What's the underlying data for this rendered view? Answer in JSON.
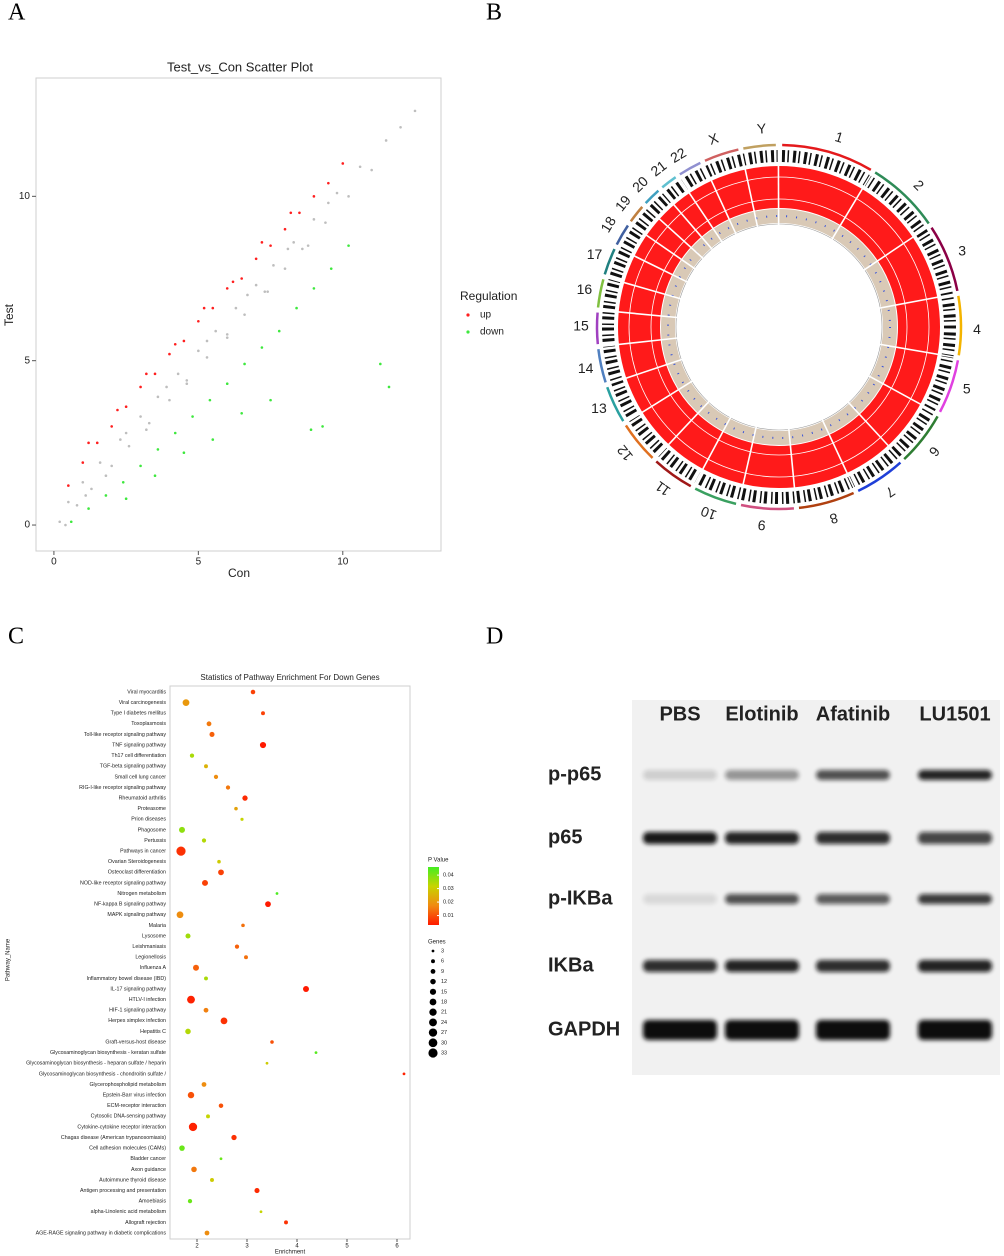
{
  "panels": [
    "A",
    "B",
    "C",
    "D"
  ],
  "chart_data": [
    {
      "type": "scatter",
      "title": "Test_vs_Con Scatter Plot",
      "xlabel": "Con",
      "ylabel": "Test",
      "xlim": [
        -0.62,
        13.4
      ],
      "ylim": [
        -0.79,
        13.6
      ],
      "xticks": [
        0,
        5,
        10
      ],
      "yticks": [
        0,
        5,
        10
      ],
      "legend_title": "Regulation",
      "series": [
        {
          "name": "up",
          "color": "#ff1f1f",
          "x": [
            0.5,
            1,
            1.5,
            2,
            2.5,
            3,
            3.5,
            4,
            4.5,
            5,
            5.5,
            6,
            6.5,
            7,
            7.5,
            8,
            8.5,
            9,
            9.5,
            10,
            1.2,
            2.2,
            3.2,
            4.2,
            5.2,
            6.2,
            7.2,
            8.2
          ],
          "y": [
            1.2,
            1.9,
            2.5,
            3.0,
            3.6,
            4.2,
            4.6,
            5.2,
            5.6,
            6.2,
            6.6,
            7.2,
            7.5,
            8.1,
            8.5,
            9.0,
            9.5,
            10.0,
            10.4,
            11.0,
            2.5,
            3.5,
            4.6,
            5.5,
            6.6,
            7.4,
            8.6,
            9.5
          ]
        },
        {
          "name": "down",
          "color": "#3ee83e",
          "x": [
            0.6,
            1.2,
            1.8,
            2.4,
            3,
            3.6,
            4.2,
            4.8,
            5.4,
            6,
            6.6,
            7.2,
            7.8,
            8.4,
            9,
            9.6,
            10.2,
            2.5,
            3.5,
            4.5,
            5.5,
            6.5,
            7.5,
            11.3,
            11.6,
            9.3,
            8.9
          ],
          "y": [
            0.1,
            0.5,
            0.9,
            1.3,
            1.8,
            2.3,
            2.8,
            3.3,
            3.8,
            4.3,
            4.9,
            5.4,
            5.9,
            6.6,
            7.2,
            7.8,
            8.5,
            0.8,
            1.5,
            2.2,
            2.6,
            3.4,
            3.8,
            4.9,
            4.2,
            3.0,
            2.9
          ]
        },
        {
          "color": "#bebebe",
          "x": [
            0.2,
            0.5,
            0.8,
            1,
            1.3,
            1.6,
            2,
            2.3,
            2.6,
            3,
            3.3,
            3.6,
            4,
            4.3,
            4.6,
            5,
            5.3,
            5.6,
            6,
            6.3,
            6.6,
            7,
            7.3,
            7.6,
            8,
            8.3,
            8.6,
            9,
            9.4,
            9.8,
            10.2,
            10.6,
            11,
            11.5,
            12,
            12.5,
            0.4,
            1.1,
            1.8,
            2.5,
            3.2,
            3.9,
            4.6,
            5.3,
            6,
            6.7,
            7.4,
            8.1,
            8.8,
            9.5
          ],
          "y": [
            0.1,
            0.7,
            0.6,
            1.3,
            1.1,
            1.9,
            1.8,
            2.6,
            2.4,
            3.3,
            3.1,
            3.9,
            3.8,
            4.6,
            4.4,
            5.3,
            5.1,
            5.9,
            5.8,
            6.6,
            6.4,
            7.3,
            7.1,
            7.9,
            7.8,
            8.6,
            8.4,
            9.3,
            9.2,
            10.1,
            10.0,
            10.9,
            10.8,
            11.7,
            12.1,
            12.6,
            0.0,
            0.9,
            1.5,
            2.8,
            2.9,
            4.2,
            4.3,
            5.6,
            5.7,
            7.0,
            7.1,
            8.4,
            8.5,
            9.8
          ]
        }
      ]
    },
    {
      "type": "dot",
      "title": "Statistics of Pathway Enrichment For Down Genes",
      "xlabel": "Enrichment",
      "ylabel": "Pathway_Name",
      "xlim": [
        1.46,
        6.26
      ],
      "xticks": [
        2,
        3,
        4,
        5,
        6
      ],
      "categories": [
        "Viral myocarditis",
        "Viral carcinogenesis",
        "Type I diabetes mellitus",
        "Toxoplasmosis",
        "Toll-like receptor signaling pathway",
        "TNF signaling pathway",
        "Th17 cell differentiation",
        "TGF-beta signaling pathway",
        "Small cell lung cancer",
        "RIG-I-like receptor signaling pathway",
        "Rheumatoid arthritis",
        "Proteasome",
        "Prion diseases",
        "Phagosome",
        "Pertussis",
        "Pathways in cancer",
        "Ovarian Steroidogenesis",
        "Osteoclast differentiation",
        "NOD-like receptor signaling pathway",
        "Nitrogen metabolism",
        "NF-kappa B signaling pathway",
        "MAPK signaling pathway",
        "Malaria",
        "Lysosome",
        "Leishmaniasis",
        "Legionellosis",
        "Influenza A",
        "Inflammatory bowel disease (IBD)",
        "IL-17 signaling pathway",
        "HTLV-I infection",
        "HIF-1 signaling pathway",
        "Herpes simplex infection",
        "Hepatitis C",
        "Graft-versus-host disease",
        "Glycosaminoglycan biosynthesis - keratan sulfate",
        "Glycosaminoglycan biosynthesis - heparan sulfate / heparin",
        "Glycosaminoglycan biosynthesis - chondroitin sulfate /",
        "Glycerophospholipid metabolism",
        "Epstein-Barr virus infection",
        "ECM-receptor interaction",
        "Cytosolic DNA-sensing pathway",
        "Cytokine-cytokine receptor interaction",
        "Chagas disease (American trypanosomiasis)",
        "Cell adhesion molecules (CAMs)",
        "Bladder cancer",
        "Axon guidance",
        "Autoimmune thyroid disease",
        "Antigen processing and presentation",
        "Amoebiasis",
        "alpha-Linolenic acid metabolism",
        "Allograft rejection",
        "AGE-RAGE signaling pathway in diabetic complications"
      ],
      "values": [
        3.12,
        1.78,
        3.32,
        2.24,
        2.3,
        3.32,
        1.9,
        2.18,
        2.38,
        2.62,
        2.96,
        2.78,
        2.9,
        1.7,
        2.14,
        1.68,
        2.44,
        2.48,
        2.16,
        3.6,
        3.42,
        1.66,
        2.92,
        1.82,
        2.8,
        2.98,
        1.98,
        2.18,
        4.18,
        1.88,
        2.18,
        2.54,
        1.82,
        3.5,
        4.38,
        3.4,
        6.14,
        2.14,
        1.88,
        2.48,
        2.22,
        1.92,
        2.74,
        1.7,
        2.48,
        1.94,
        2.3,
        3.2,
        1.86,
        3.28,
        3.78,
        2.2
      ],
      "sizes": [
        8,
        18,
        6,
        9,
        10,
        15,
        7,
        6,
        7,
        7,
        11,
        5,
        4,
        14,
        7,
        33,
        5,
        13,
        14,
        3,
        13,
        18,
        5,
        10,
        7,
        6,
        14,
        6,
        14,
        24,
        9,
        18,
        12,
        5,
        3,
        3,
        3,
        9,
        16,
        8,
        6,
        27,
        11,
        12,
        3,
        12,
        6,
        10,
        7,
        3,
        6,
        9
      ],
      "pvalues": [
        0.008,
        0.02,
        0.008,
        0.015,
        0.012,
        0.003,
        0.035,
        0.025,
        0.018,
        0.015,
        0.005,
        0.022,
        0.032,
        0.038,
        0.034,
        0.006,
        0.03,
        0.008,
        0.008,
        0.045,
        0.003,
        0.018,
        0.014,
        0.036,
        0.012,
        0.014,
        0.012,
        0.035,
        0.002,
        0.004,
        0.016,
        0.006,
        0.034,
        0.01,
        0.044,
        0.03,
        0.004,
        0.018,
        0.01,
        0.01,
        0.032,
        0.004,
        0.006,
        0.042,
        0.042,
        0.015,
        0.03,
        0.005,
        0.042,
        0.032,
        0.006,
        0.018
      ],
      "color_title": "P Value",
      "color_lim": [
        0.003,
        0.046
      ],
      "color_ticks": [
        0.01,
        0.02,
        0.03,
        0.04
      ],
      "colorscale": [
        "#ff1a00",
        "#f08a10",
        "#c8d400",
        "#44ee22"
      ],
      "size_title": "Genes",
      "size_ticks": [
        3,
        6,
        9,
        12,
        15,
        18,
        21,
        24,
        27,
        30,
        33
      ]
    }
  ],
  "circos": {
    "chromosomes": [
      "1",
      "2",
      "3",
      "4",
      "5",
      "6",
      "7",
      "8",
      "9",
      "10",
      "11",
      "12",
      "13",
      "14",
      "15",
      "16",
      "17",
      "18",
      "19",
      "20",
      "21",
      "22",
      "X",
      "Y"
    ]
  },
  "blot": {
    "lanes": [
      "PBS",
      "Elotinib",
      "Afatinib",
      "LU1501"
    ],
    "rows": [
      "p-p65",
      "p65",
      "p-IKBa",
      "IKBa",
      "GAPDH"
    ],
    "intensity": [
      [
        0.15,
        0.4,
        0.7,
        0.9
      ],
      [
        0.95,
        0.9,
        0.85,
        0.75
      ],
      [
        0.1,
        0.7,
        0.65,
        0.8
      ],
      [
        0.85,
        0.9,
        0.85,
        0.9
      ],
      [
        1,
        1,
        1,
        1
      ]
    ]
  }
}
